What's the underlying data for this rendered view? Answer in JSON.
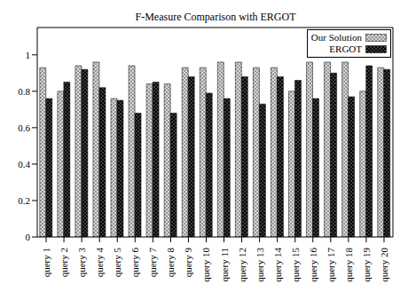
{
  "chart_data": {
    "type": "bar",
    "title": "F-Measure Comparison with ERGOT",
    "categories": [
      "query 1",
      "query 2",
      "query 3",
      "query 4",
      "query 5",
      "query 6",
      "query 7",
      "query 8",
      "query 9",
      "query 10",
      "query 11",
      "query 12",
      "query 13",
      "query 14",
      "query 15",
      "query 16",
      "query 17",
      "query 18",
      "query 19",
      "query 20"
    ],
    "series": [
      {
        "name": "Our Solution",
        "color": "#d9d9d9",
        "values": [
          0.93,
          0.8,
          0.94,
          0.96,
          0.76,
          0.94,
          0.84,
          0.84,
          0.93,
          0.93,
          0.96,
          0.96,
          0.93,
          0.93,
          0.8,
          0.96,
          0.96,
          0.96,
          0.8,
          0.93
        ]
      },
      {
        "name": "ERGOT",
        "color": "#000000",
        "values": [
          0.76,
          0.85,
          0.92,
          0.82,
          0.75,
          0.68,
          0.85,
          0.68,
          0.88,
          0.79,
          0.76,
          0.88,
          0.73,
          0.88,
          0.86,
          0.76,
          0.9,
          0.77,
          0.94,
          0.92
        ]
      }
    ],
    "ylim": [
      0,
      1.15
    ],
    "yticks": [
      0,
      0.2,
      0.4,
      0.6,
      0.8,
      1
    ],
    "grid": false,
    "legend": "upper right"
  }
}
